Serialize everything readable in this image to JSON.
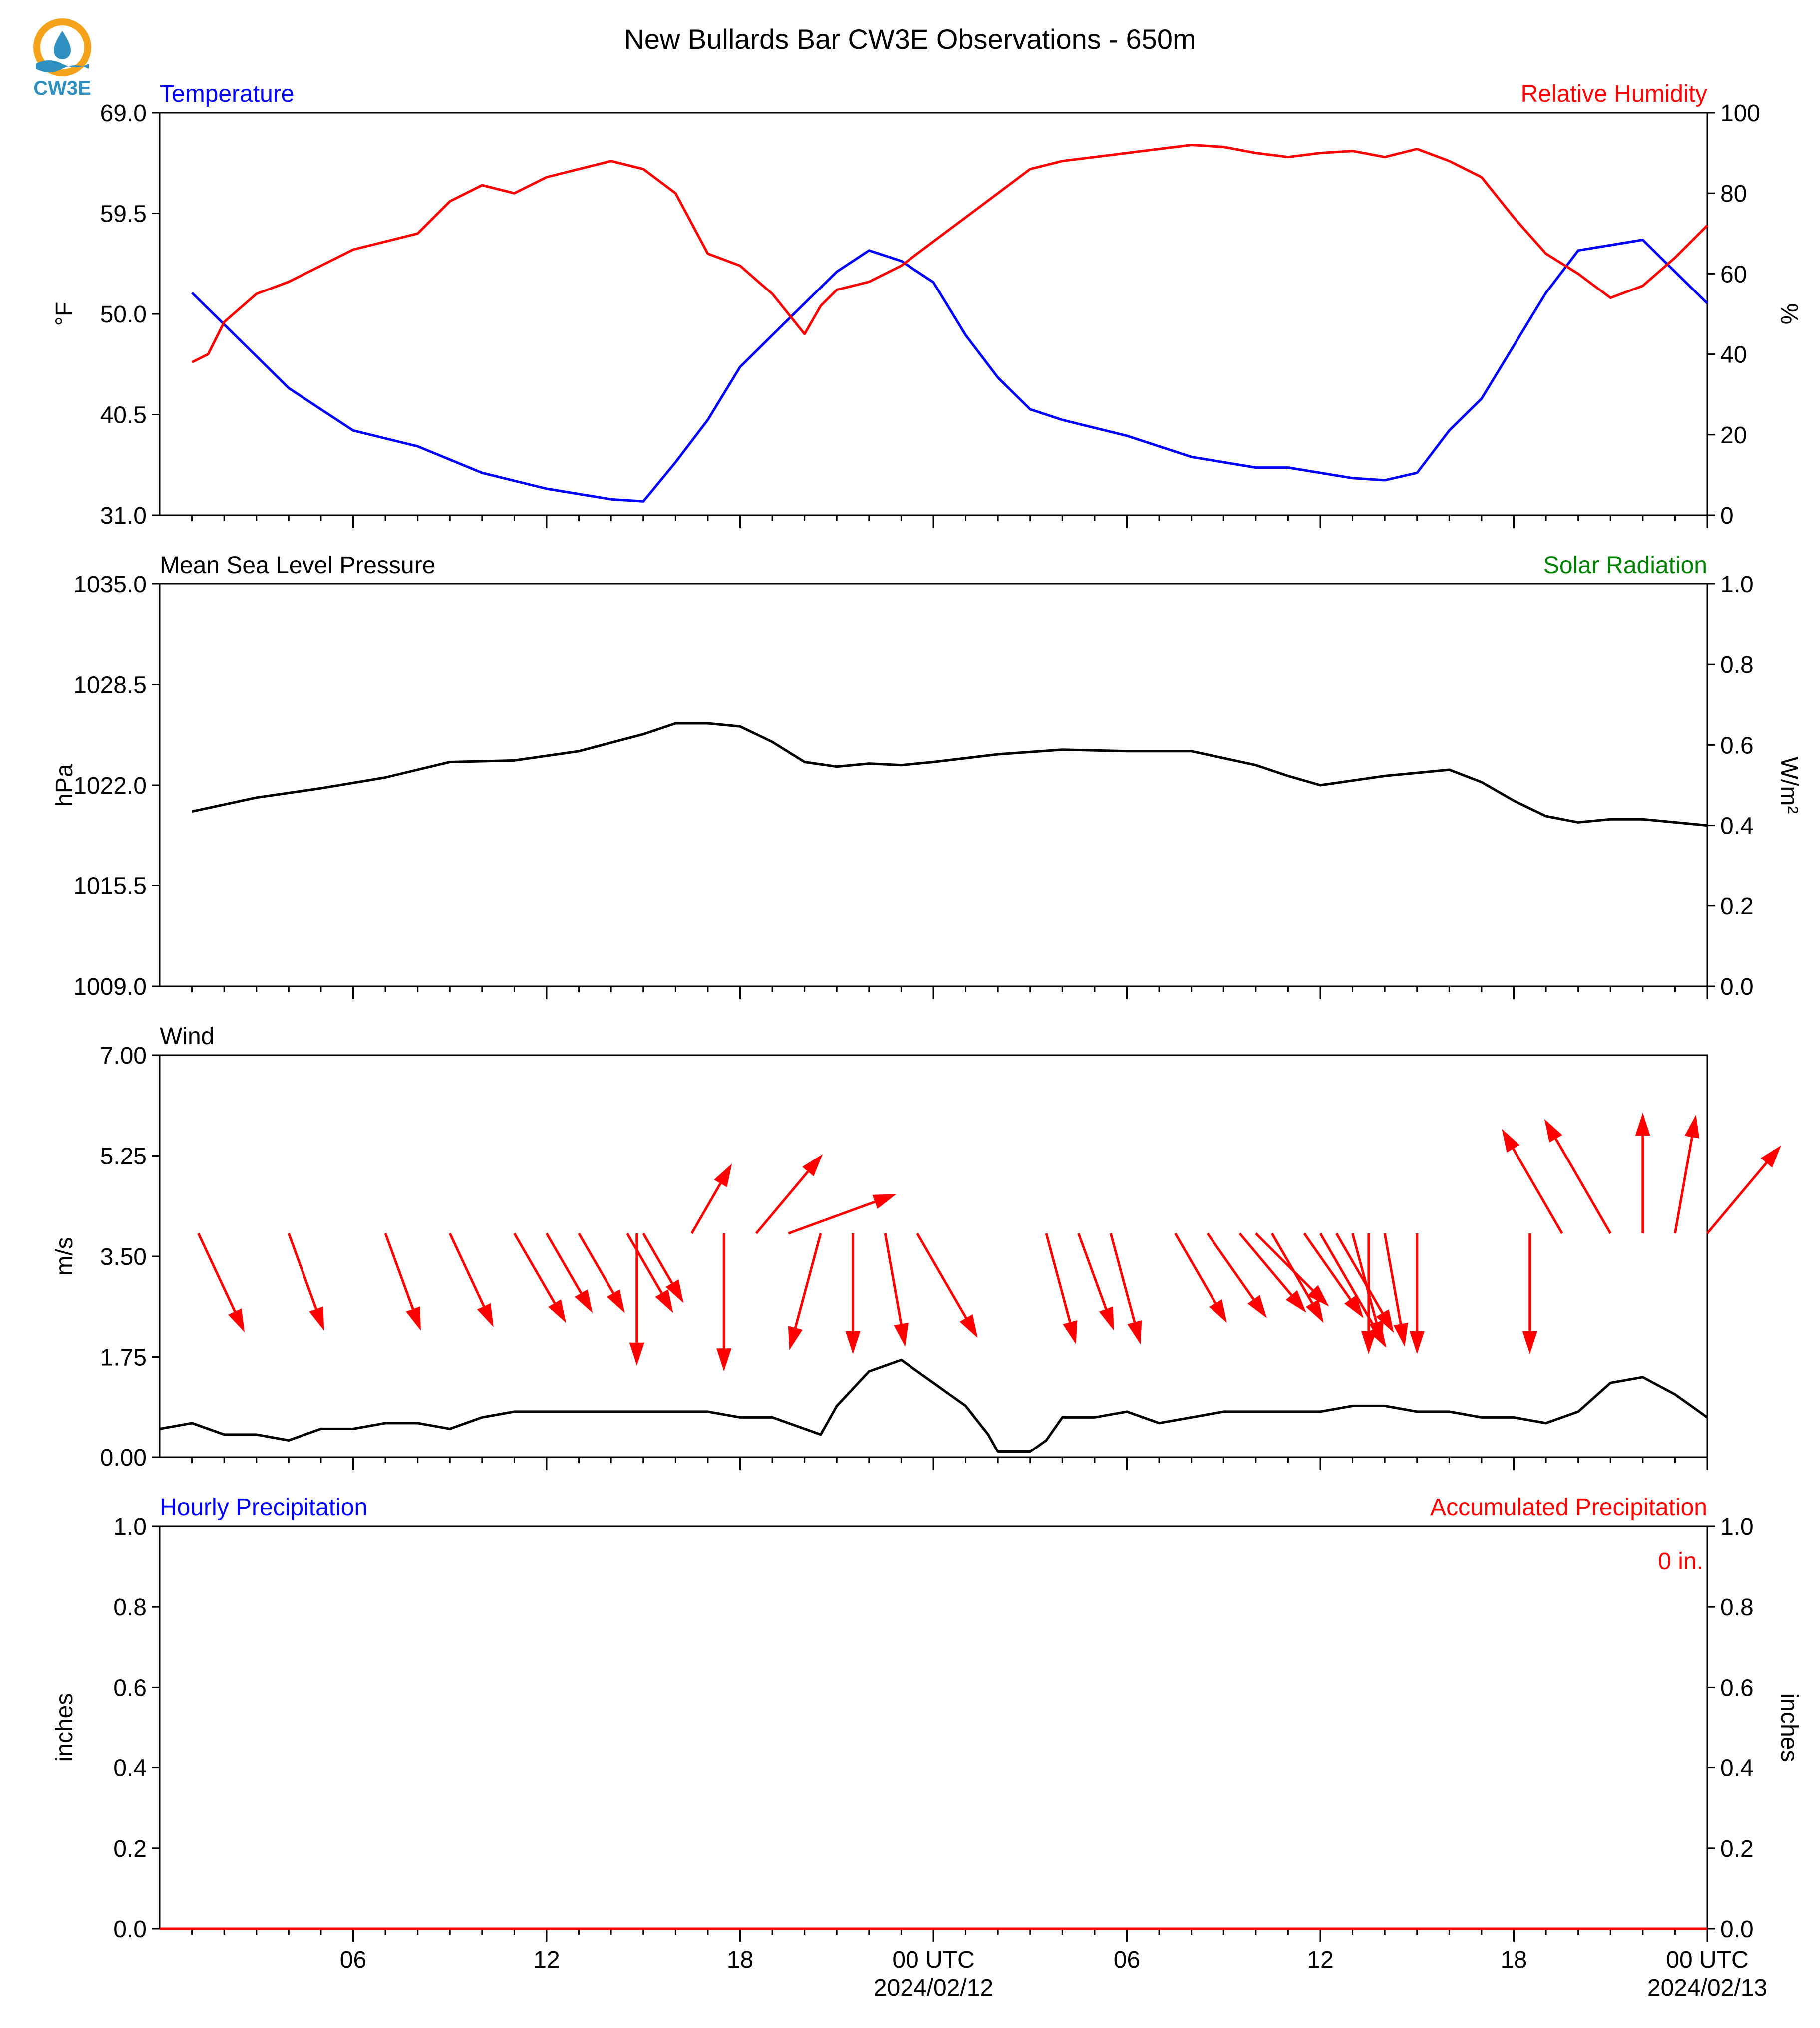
{
  "title": "New Bullards Bar CW3E Observations - 650m",
  "logo_text": "CW3E",
  "colors": {
    "temperature": "#0000ff",
    "humidity": "#ff0000",
    "pressure": "#000000",
    "solar": "#008000",
    "wind": "#000000",
    "wind_arrows": "#ff0000",
    "hourly_precip": "#0000ff",
    "accum_precip": "#ff0000",
    "logo_orange": "#f5a21b",
    "logo_blue": "#2f8fbf"
  },
  "x_axis": {
    "tick_labels": [
      "06",
      "12",
      "18",
      "00 UTC",
      "06",
      "12",
      "18",
      "00 UTC"
    ],
    "tick_hours": [
      6,
      12,
      18,
      24,
      30,
      36,
      42,
      48
    ],
    "date_labels": [
      "2024/02/12",
      "2024/02/13"
    ],
    "date_hours": [
      24,
      48
    ]
  },
  "chart_data": [
    {
      "type": "line",
      "left_label": "Temperature",
      "right_label": "Relative Humidity",
      "ylabel": "°F",
      "ylabel_right": "%",
      "ylim": [
        31.0,
        69.0
      ],
      "ylim_right": [
        0,
        100
      ],
      "yticks": [
        "69.0",
        "59.5",
        "50.0",
        "40.5",
        "31.0"
      ],
      "yticks_right": [
        "100",
        "80",
        "60",
        "40",
        "20",
        "0"
      ],
      "series": [
        {
          "name": "Temperature",
          "axis": "left",
          "x": [
            1,
            2,
            3,
            4,
            6,
            8,
            10,
            12,
            13,
            14,
            15,
            16,
            17,
            18,
            19,
            20,
            21,
            22,
            23,
            24,
            25,
            26,
            27,
            28,
            30,
            32,
            34,
            35,
            36,
            37,
            38,
            39,
            40,
            41,
            42,
            43,
            44,
            45,
            46,
            47,
            48
          ],
          "y": [
            52,
            49,
            46,
            43,
            39,
            37.5,
            35,
            33.5,
            33,
            32.5,
            32.3,
            36,
            40,
            45,
            48,
            51,
            54,
            56,
            55,
            53,
            48,
            44,
            41,
            40,
            38.5,
            36.5,
            35.5,
            35.5,
            35,
            34.5,
            34.3,
            35,
            39,
            42,
            47,
            52,
            56,
            56.5,
            57,
            54,
            51
          ]
        },
        {
          "name": "Relative Humidity",
          "axis": "right",
          "x": [
            1,
            1.5,
            2,
            3,
            4,
            5,
            6,
            7,
            8,
            9,
            10,
            11,
            12,
            13,
            14,
            15,
            16,
            17,
            18,
            19,
            20,
            20.5,
            21,
            22,
            23,
            24,
            25,
            26,
            27,
            28,
            29,
            30,
            31,
            32,
            33,
            34,
            35,
            36,
            37,
            38,
            39,
            40,
            41,
            42,
            43,
            44,
            45,
            46,
            47,
            48
          ],
          "y": [
            38,
            40,
            48,
            55,
            58,
            62,
            66,
            68,
            70,
            78,
            82,
            80,
            84,
            86,
            88,
            86,
            80,
            65,
            62,
            55,
            45,
            52,
            56,
            58,
            62,
            68,
            74,
            80,
            86,
            88,
            89,
            90,
            91,
            92,
            91.5,
            90,
            89,
            90,
            90.5,
            89,
            91,
            88,
            84,
            74,
            65,
            60,
            54,
            57,
            64,
            72
          ]
        }
      ]
    },
    {
      "type": "line",
      "left_label": "Mean Sea Level Pressure",
      "right_label": "Solar Radiation",
      "ylabel": "hPa",
      "ylabel_right": "W/m²",
      "ylim": [
        1009.0,
        1035.0
      ],
      "ylim_right": [
        0.0,
        1.0
      ],
      "yticks": [
        "1035.0",
        "1028.5",
        "1022.0",
        "1015.5",
        "1009.0"
      ],
      "yticks_right": [
        "1.0",
        "0.8",
        "0.6",
        "0.4",
        "0.2",
        "0.0"
      ],
      "series": [
        {
          "name": "Mean Sea Level Pressure",
          "axis": "left",
          "x": [
            1,
            3,
            5,
            7,
            9,
            11,
            13,
            15,
            16,
            17,
            18,
            19,
            20,
            21,
            22,
            23,
            24,
            26,
            28,
            30,
            32,
            34,
            35,
            36,
            37,
            38,
            39,
            40,
            41,
            42,
            43,
            44,
            45,
            46,
            47,
            48
          ],
          "y": [
            1020.3,
            1021.2,
            1021.8,
            1022.5,
            1023.5,
            1023.6,
            1024.2,
            1025.3,
            1026.0,
            1026.0,
            1025.8,
            1024.8,
            1023.5,
            1023.2,
            1023.4,
            1023.3,
            1023.5,
            1024.0,
            1024.3,
            1024.2,
            1024.2,
            1023.3,
            1022.6,
            1022.0,
            1022.3,
            1022.6,
            1022.8,
            1023.0,
            1022.2,
            1021.0,
            1020.0,
            1019.6,
            1019.8,
            1019.8,
            1019.6,
            1019.4
          ]
        }
      ]
    },
    {
      "type": "line",
      "left_label": "Wind",
      "ylabel": "m/s",
      "ylim": [
        0.0,
        7.0
      ],
      "yticks": [
        "7.00",
        "5.25",
        "3.50",
        "1.75",
        "0.00"
      ],
      "series": [
        {
          "name": "Wind",
          "axis": "left",
          "x": [
            0,
            1,
            2,
            3,
            4,
            5,
            6,
            7,
            8,
            9,
            10,
            11,
            12,
            13,
            14,
            15,
            16,
            17,
            18,
            19,
            20,
            20.5,
            21,
            22,
            23,
            24,
            25,
            25.7,
            26,
            27,
            27.5,
            28,
            29,
            30,
            31,
            32,
            33,
            34,
            35,
            36,
            37,
            38,
            39,
            40,
            41,
            42,
            43,
            44,
            45,
            46,
            47,
            48
          ],
          "y": [
            0.5,
            0.6,
            0.4,
            0.4,
            0.3,
            0.5,
            0.5,
            0.6,
            0.6,
            0.5,
            0.7,
            0.8,
            0.8,
            0.8,
            0.8,
            0.8,
            0.8,
            0.8,
            0.7,
            0.7,
            0.5,
            0.4,
            0.9,
            1.5,
            1.7,
            1.3,
            0.9,
            0.4,
            0.1,
            0.1,
            0.3,
            0.7,
            0.7,
            0.8,
            0.6,
            0.7,
            0.8,
            0.8,
            0.8,
            0.8,
            0.9,
            0.9,
            0.8,
            0.8,
            0.7,
            0.7,
            0.6,
            0.8,
            1.3,
            1.4,
            1.1,
            0.7
          ]
        }
      ],
      "barbs": {
        "name": "Wind direction",
        "tail_level": 3.9,
        "hours": [
          1.2,
          4.0,
          7.0,
          9.0,
          11.0,
          12.0,
          13.0,
          14.5,
          14.8,
          15.0,
          16.5,
          17.5,
          18.5,
          19.5,
          20.5,
          21.5,
          22.5,
          23.5,
          27.5,
          28.5,
          29.5,
          31.5,
          32.5,
          33.5,
          34.0,
          34.5,
          35.5,
          36.0,
          36.5,
          37.0,
          37.5,
          38.0,
          39.0,
          42.5,
          43.5,
          45.0,
          46.0,
          47.0,
          48.0
        ],
        "dir_deg": [
          335,
          340,
          340,
          335,
          330,
          330,
          330,
          330,
          0,
          330,
          210,
          0,
          220,
          250,
          15,
          0,
          350,
          330,
          345,
          340,
          345,
          330,
          325,
          320,
          315,
          330,
          325,
          330,
          330,
          345,
          0,
          350,
          0,
          0,
          150,
          150,
          180,
          190,
          220
        ],
        "length": [
          1.9,
          1.8,
          1.8,
          1.8,
          1.8,
          1.6,
          1.6,
          1.6,
          2.3,
          1.4,
          1.4,
          2.4,
          1.8,
          2.0,
          2.1,
          2.1,
          2.0,
          2.1,
          2.0,
          1.8,
          2.0,
          1.8,
          1.8,
          1.8,
          1.8,
          1.8,
          1.8,
          2.3,
          2.0,
          2.0,
          2.1,
          2.0,
          2.1,
          2.1,
          2.1,
          2.3,
          2.1,
          2.1,
          2.0
        ]
      }
    },
    {
      "type": "line",
      "left_label": "Hourly Precipitation",
      "right_label": "Accumulated Precipitation",
      "ylabel": "inches",
      "ylabel_right": "inches",
      "ylim": [
        0.0,
        1.0
      ],
      "ylim_right": [
        0.0,
        1.0
      ],
      "yticks": [
        "1.0",
        "0.8",
        "0.6",
        "0.4",
        "0.2",
        "0.0"
      ],
      "yticks_right": [
        "1.0",
        "0.8",
        "0.6",
        "0.4",
        "0.2",
        "0.0"
      ],
      "annotation": "0 in.",
      "series": [
        {
          "name": "Accumulated Precipitation",
          "axis": "right",
          "x": [
            0,
            48
          ],
          "y": [
            0,
            0
          ]
        }
      ]
    }
  ]
}
